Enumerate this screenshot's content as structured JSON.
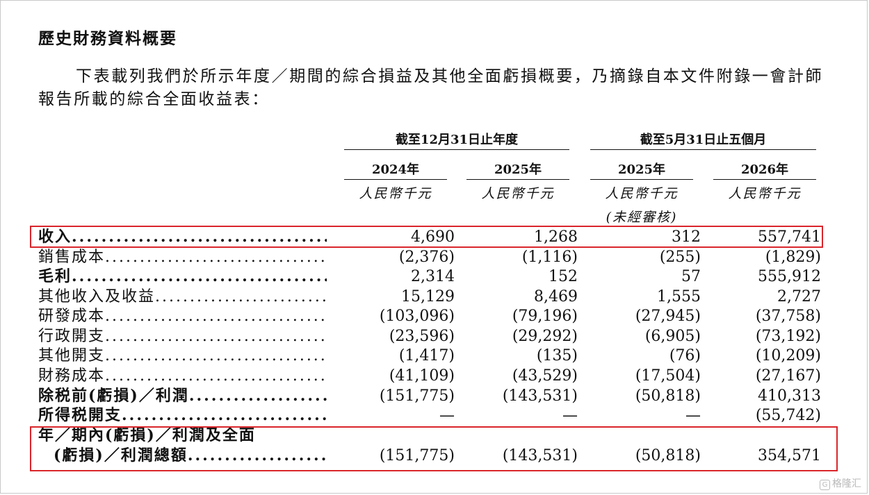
{
  "heading": "歷史財務資料概要",
  "intro": "下表載列我們於所示年度／期間的綜合損益及其他全面虧損概要，乃摘錄自本文件附錄一會計師報告所載的綜合全面收益表：",
  "periods": {
    "annual": "截至12月31日止年度",
    "five_month": "截至5月31日止五個月"
  },
  "columns": [
    {
      "year": "2024年",
      "unit": "人民幣千元",
      "note": ""
    },
    {
      "year": "2025年",
      "unit": "人民幣千元",
      "note": ""
    },
    {
      "year": "2025年",
      "unit": "人民幣千元",
      "note": "(未經審核)"
    },
    {
      "year": "2026年",
      "unit": "人民幣千元",
      "note": ""
    }
  ],
  "rows": [
    {
      "label": "收入",
      "bold": true,
      "values": [
        "4,690",
        "1,268",
        "312",
        "557,741"
      ]
    },
    {
      "label": "銷售成本",
      "bold": false,
      "values": [
        "(2,376)",
        "(1,116)",
        "(255)",
        "(1,829)"
      ]
    },
    {
      "label": "毛利",
      "bold": true,
      "values": [
        "2,314",
        "152",
        "57",
        "555,912"
      ]
    },
    {
      "label": "其他收入及收益",
      "bold": false,
      "values": [
        "15,129",
        "8,469",
        "1,555",
        "2,727"
      ]
    },
    {
      "label": "研發成本",
      "bold": false,
      "values": [
        "(103,096)",
        "(79,196)",
        "(27,945)",
        "(37,758)"
      ]
    },
    {
      "label": "行政開支",
      "bold": false,
      "values": [
        "(23,596)",
        "(29,292)",
        "(6,905)",
        "(73,192)"
      ]
    },
    {
      "label": "其他開支",
      "bold": false,
      "values": [
        "(1,417)",
        "(135)",
        "(76)",
        "(10,209)"
      ]
    },
    {
      "label": "財務成本",
      "bold": false,
      "values": [
        "(41,109)",
        "(43,529)",
        "(17,504)",
        "(27,167)"
      ]
    },
    {
      "label": "除税前(虧損)／利潤",
      "bold": true,
      "values": [
        "(151,775)",
        "(143,531)",
        "(50,818)",
        "410,313"
      ]
    },
    {
      "label": "所得税開支",
      "bold": true,
      "values": [
        "—",
        "—",
        "—",
        "(55,742)"
      ]
    }
  ],
  "total_row": {
    "label_line1": "年／期內(虧損)／利潤及全面",
    "label_line2": "(虧損)／利潤總額",
    "values": [
      "(151,775)",
      "(143,531)",
      "(50,818)",
      "354,571"
    ]
  },
  "watermark": "格隆汇",
  "colors": {
    "highlight": "#d9252a",
    "text": "#111111"
  }
}
